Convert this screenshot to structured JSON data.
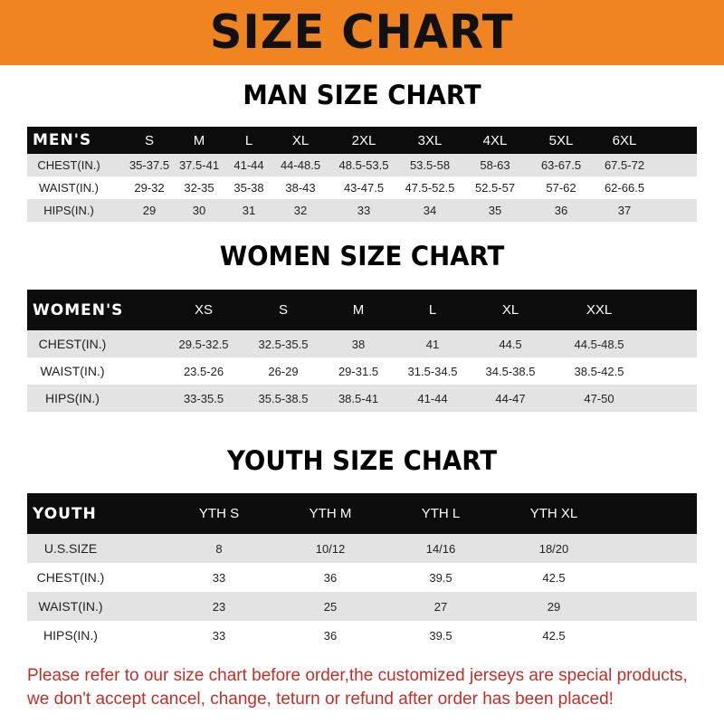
{
  "banner_title": "SIZE CHART",
  "colors": {
    "banner": "#f08420",
    "header_row": "#0c0c0c",
    "stripe": "#e3e3e3",
    "notice": "#c0302a"
  },
  "men": {
    "title": "MAN SIZE CHART",
    "header": [
      "MEN'S",
      "S",
      "M",
      "L",
      "XL",
      "2XL",
      "3XL",
      "4XL",
      "5XL",
      "6XL"
    ],
    "rows": [
      [
        "CHEST(IN.)",
        "35-37.5",
        "37.5-41",
        "41-44",
        "44-48.5",
        "48.5-53.5",
        "53.5-58",
        "58-63",
        "63-67.5",
        "67.5-72"
      ],
      [
        "WAIST(IN.)",
        "29-32",
        "32-35",
        "35-38",
        "38-43",
        "43-47.5",
        "47.5-52.5",
        "52.5-57",
        "57-62",
        "62-66.5"
      ],
      [
        "HIPS(IN.)",
        "29",
        "30",
        "31",
        "32",
        "33",
        "34",
        "35",
        "36",
        "37"
      ]
    ]
  },
  "women": {
    "title": "WOMEN SIZE CHART",
    "header": [
      "WOMEN'S",
      "XS",
      "S",
      "M",
      "L",
      "XL",
      "XXL"
    ],
    "rows": [
      [
        "CHEST(IN.)",
        "29.5-32.5",
        "32.5-35.5",
        "38",
        "41",
        "44.5",
        "44.5-48.5"
      ],
      [
        "WAIST(IN.)",
        "23.5-26",
        "26-29",
        "29-31.5",
        "31.5-34.5",
        "34.5-38.5",
        "38.5-42.5"
      ],
      [
        "HIPS(IN.)",
        "33-35.5",
        "35.5-38.5",
        "38.5-41",
        "41-44",
        "44-47",
        "47-50"
      ]
    ]
  },
  "youth": {
    "title": "YOUTH SIZE CHART",
    "header": [
      "YOUTH",
      "YTH S",
      "YTH M",
      "YTH L",
      "YTH XL"
    ],
    "rows": [
      [
        "U.S.SIZE",
        "8",
        "10/12",
        "14/16",
        "18/20"
      ],
      [
        "CHEST(IN.)",
        "33",
        "36",
        "39.5",
        "42.5"
      ],
      [
        "WAIST(IN.)",
        "23",
        "25",
        "27",
        "29"
      ],
      [
        "HIPS(IN.)",
        "33",
        "36",
        "39.5",
        "42.5"
      ]
    ]
  },
  "notice": "Please refer to our size chart before order,the customized jerseys are special products, we don't accept cancel, change, teturn or refund after order has been placed!"
}
